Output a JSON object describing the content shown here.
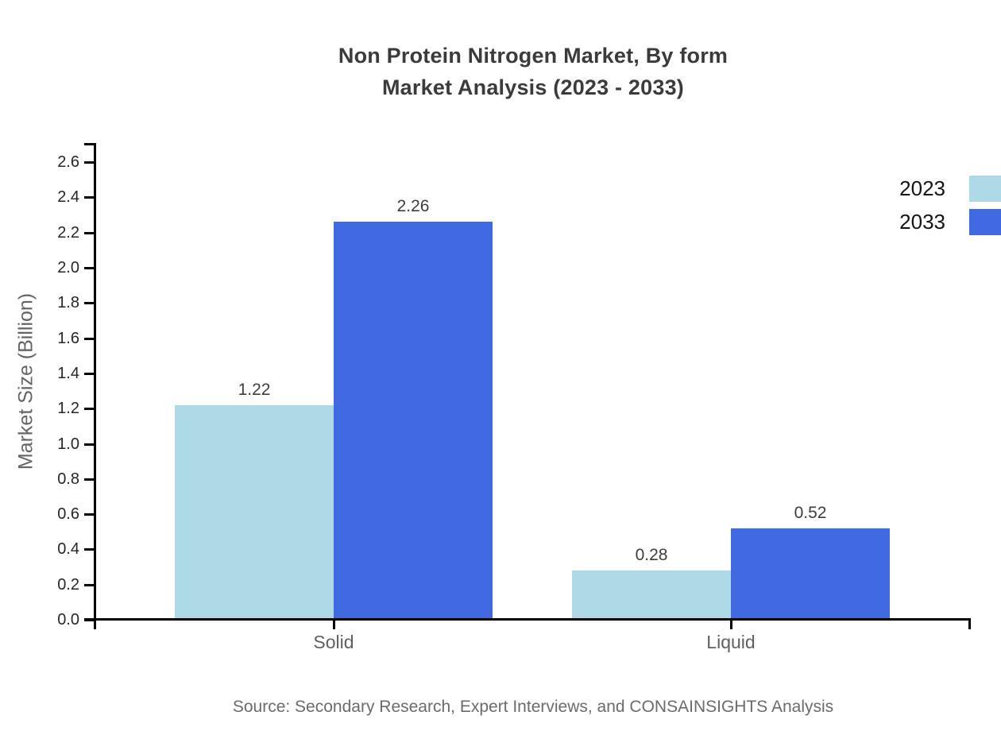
{
  "chart_data": {
    "type": "bar",
    "title": "Non Protein Nitrogen Market, By form Market Analysis (2023 - 2033)",
    "title_line1": "Non Protein Nitrogen Market, By form",
    "title_line2": "Market Analysis (2023 - 2033)",
    "categories": [
      "Solid",
      "Liquid"
    ],
    "series": [
      {
        "name": "2023",
        "color": "#add8e6",
        "values": [
          1.22,
          0.28
        ]
      },
      {
        "name": "2033",
        "color": "#4169e1",
        "values": [
          2.26,
          0.52
        ]
      }
    ],
    "value_labels": [
      [
        "1.22",
        "0.28"
      ],
      [
        "2.26",
        "0.52"
      ]
    ],
    "xlabel": "",
    "ylabel": "Market Size (Billion)",
    "ylim": [
      0.0,
      2.6
    ],
    "yticks": [
      "0.0",
      "0.2",
      "0.4",
      "0.6",
      "0.8",
      "1.0",
      "1.2",
      "1.4",
      "1.6",
      "1.8",
      "2.0",
      "2.2",
      "2.4",
      "2.6"
    ],
    "grid": false,
    "legend_position": "upper-right",
    "axis_color": "#000000",
    "source": "Source: Secondary Research, Expert Interviews, and CONSAINSIGHTS Analysis"
  }
}
